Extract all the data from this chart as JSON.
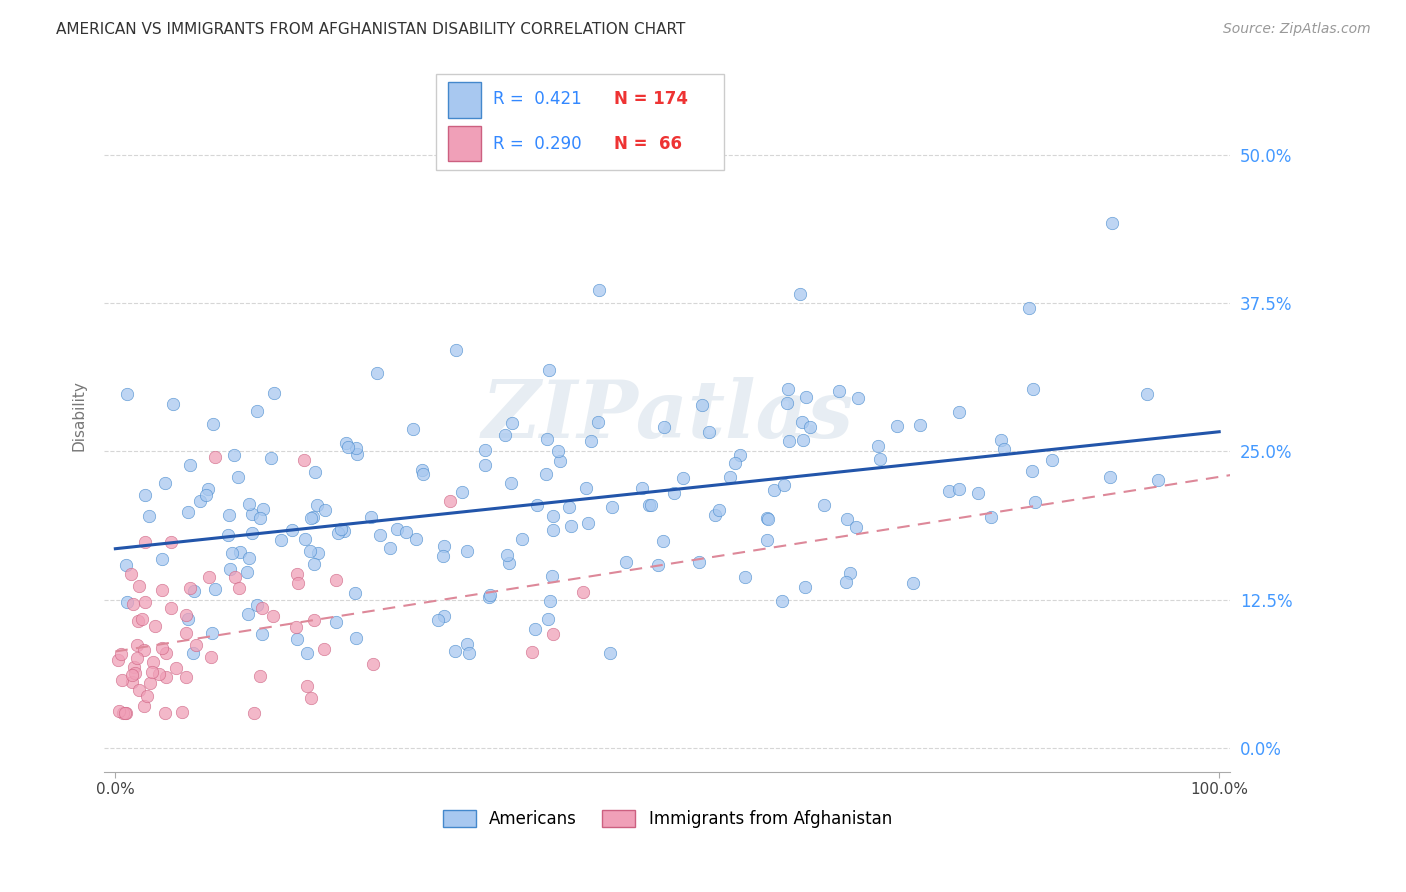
{
  "title": "AMERICAN VS IMMIGRANTS FROM AFGHANISTAN DISABILITY CORRELATION CHART",
  "source": "Source: ZipAtlas.com",
  "ylabel": "Disability",
  "watermark": "ZIPatlas",
  "color_american": "#a8c8f0",
  "color_american_edge": "#4488cc",
  "color_afghanistan": "#f0a0b8",
  "color_afghanistan_edge": "#cc6080",
  "color_trendline_american": "#2255aa",
  "color_trendline_afghanistan": "#dd8899",
  "background_color": "#ffffff",
  "grid_color": "#cccccc",
  "legend_r1": "0.421",
  "legend_n1": "174",
  "legend_r2": "0.290",
  "legend_n2": "66",
  "ytick_color": "#4499ff",
  "title_color": "#333333",
  "source_color": "#999999"
}
